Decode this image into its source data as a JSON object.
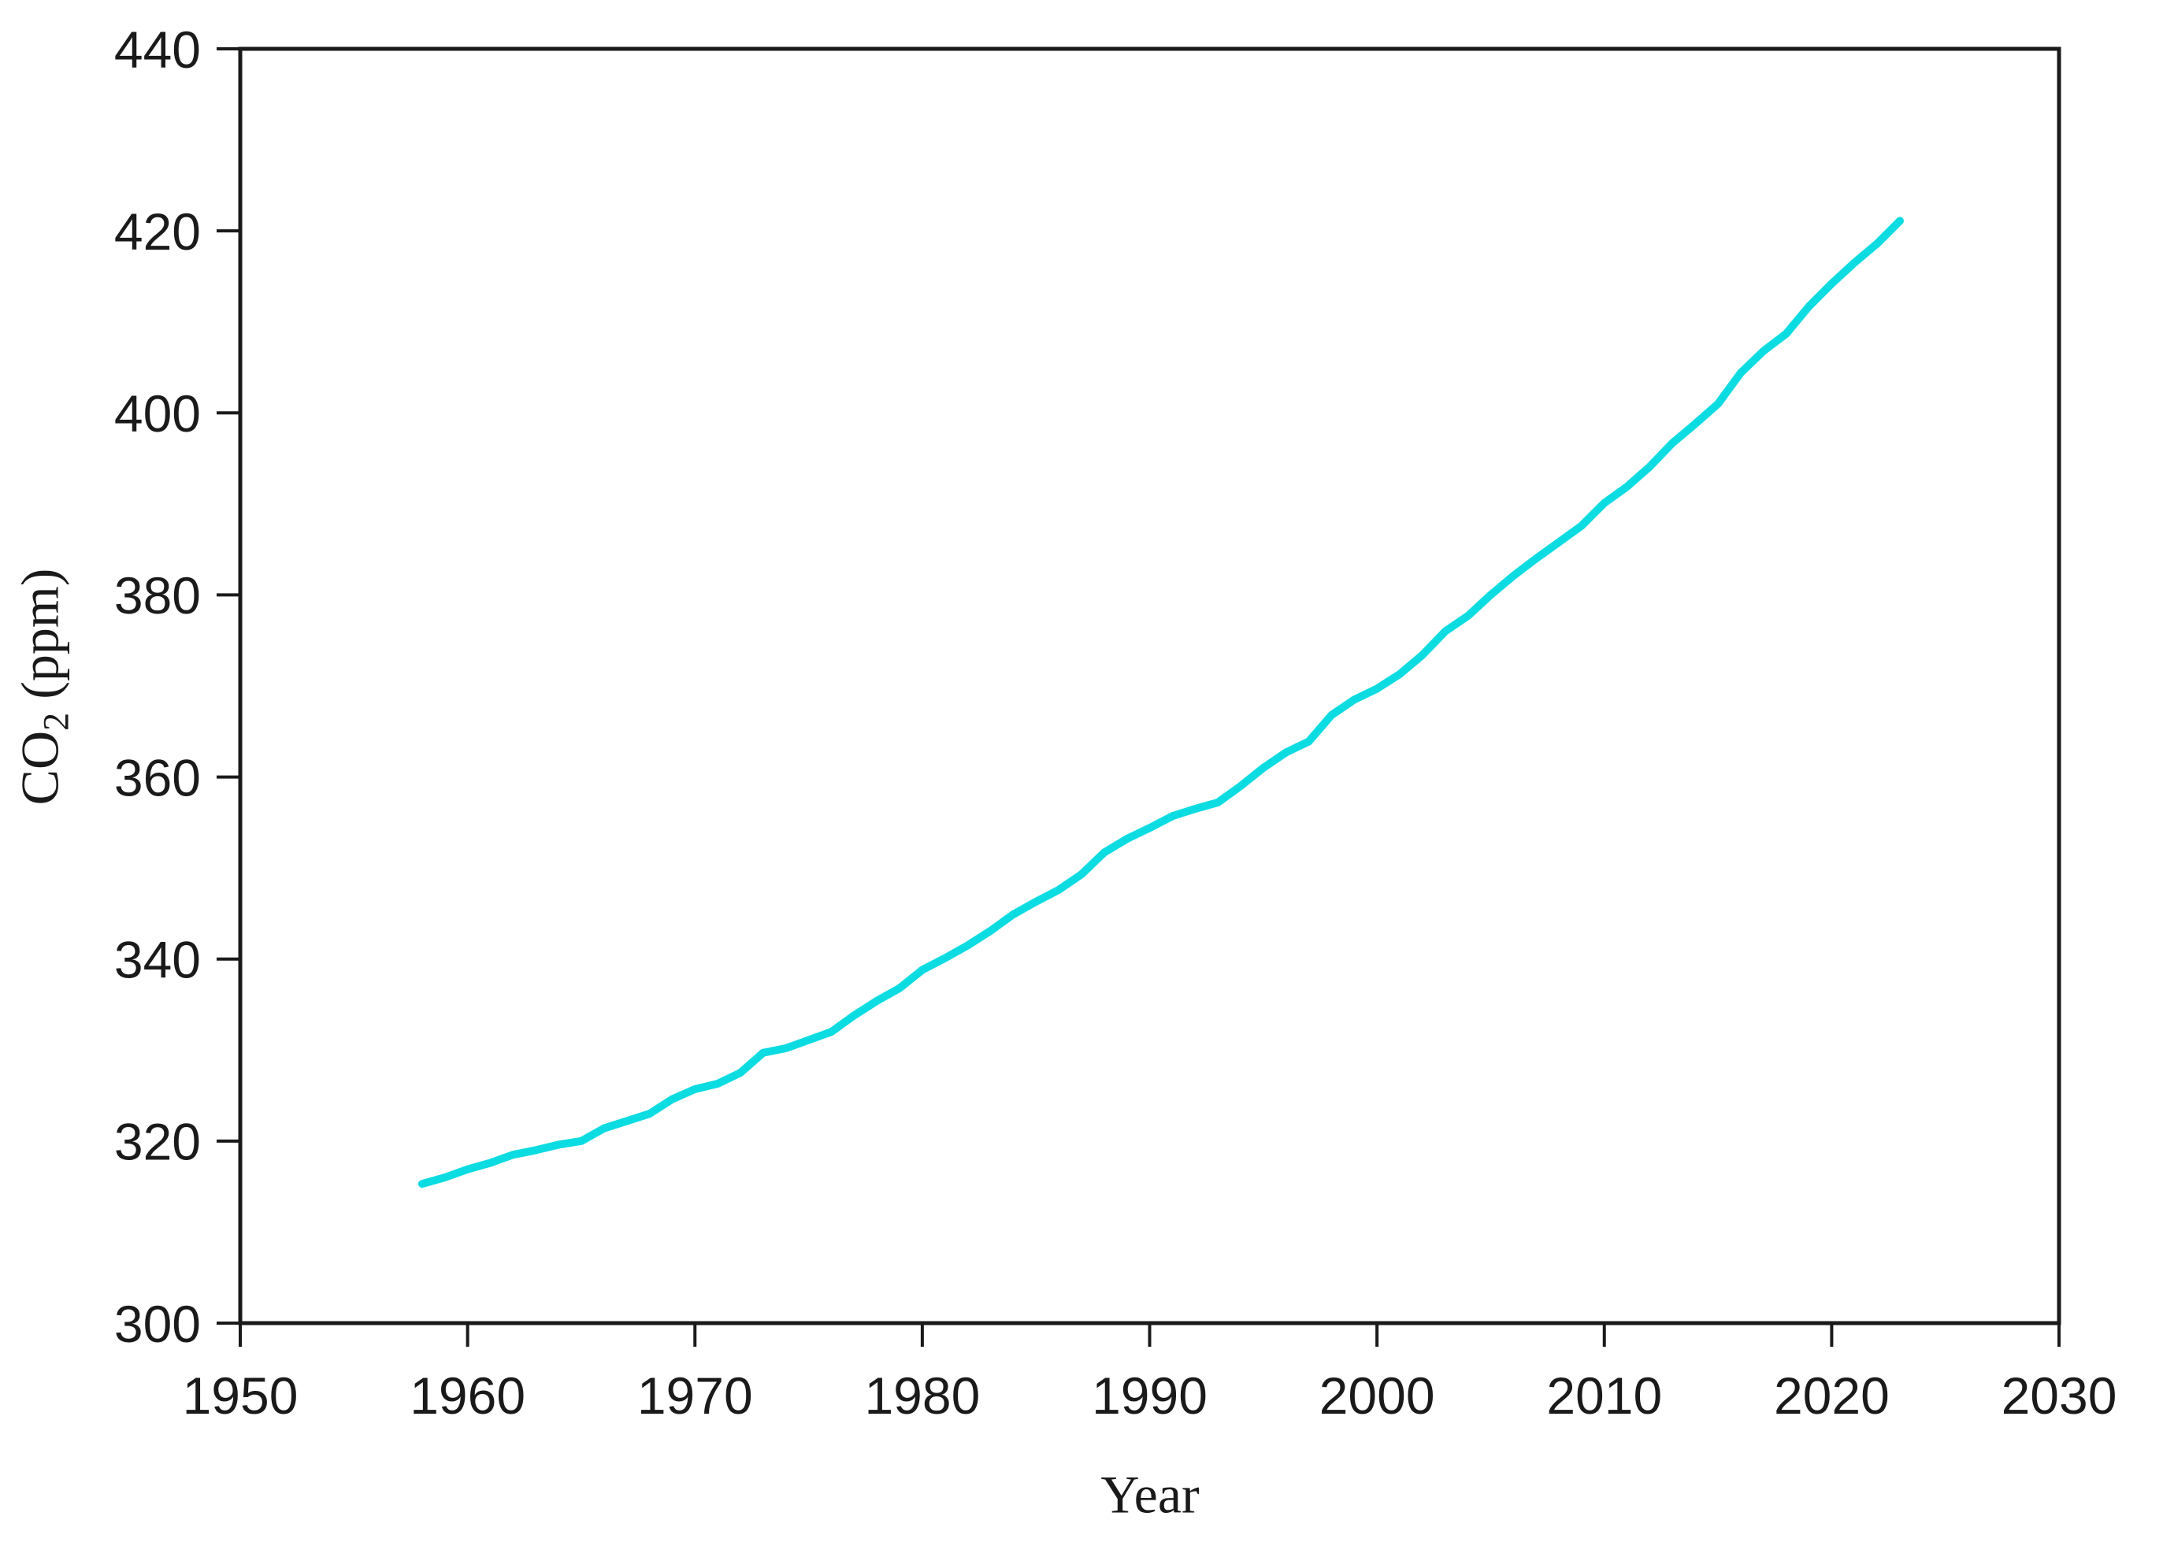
{
  "chart_data": {
    "type": "line",
    "title": "",
    "xlabel": "Year",
    "ylabel": "CO2 (ppm)",
    "ylabel_parts": {
      "prefix": "CO",
      "subscript": "2",
      "suffix": " (ppm)"
    },
    "xlim": [
      1950,
      2030
    ],
    "ylim": [
      300,
      440
    ],
    "x_ticks": [
      1950,
      1960,
      1970,
      1980,
      1990,
      2000,
      2010,
      2020,
      2030
    ],
    "y_ticks": [
      300,
      320,
      340,
      360,
      380,
      400,
      420,
      440
    ],
    "grid": false,
    "legend": "none",
    "colors": {
      "line": "#0bdce2",
      "axis": "#1a1a1a",
      "tick_label": "#1a1a1a",
      "background": "#ffffff"
    },
    "series": [
      {
        "name": "CO2",
        "color": "#0bdce2",
        "x": [
          1958,
          1959,
          1960,
          1961,
          1962,
          1963,
          1964,
          1965,
          1966,
          1967,
          1968,
          1969,
          1970,
          1971,
          1972,
          1973,
          1974,
          1975,
          1976,
          1977,
          1978,
          1979,
          1980,
          1981,
          1982,
          1983,
          1984,
          1985,
          1986,
          1987,
          1988,
          1989,
          1990,
          1991,
          1992,
          1993,
          1994,
          1995,
          1996,
          1997,
          1998,
          1999,
          2000,
          2001,
          2002,
          2003,
          2004,
          2005,
          2006,
          2007,
          2008,
          2009,
          2010,
          2011,
          2012,
          2013,
          2014,
          2015,
          2016,
          2017,
          2018,
          2019,
          2020,
          2021,
          2022,
          2023
        ],
        "y": [
          315.3,
          316.0,
          316.9,
          317.6,
          318.5,
          319.0,
          319.6,
          320.0,
          321.4,
          322.2,
          323.0,
          324.6,
          325.7,
          326.3,
          327.5,
          329.7,
          330.2,
          331.1,
          332.0,
          333.8,
          335.4,
          336.8,
          338.8,
          340.1,
          341.5,
          343.1,
          344.9,
          346.3,
          347.6,
          349.3,
          351.7,
          353.2,
          354.4,
          355.7,
          356.5,
          357.2,
          359.0,
          361.0,
          362.7,
          363.9,
          366.8,
          368.5,
          369.7,
          371.3,
          373.4,
          376.0,
          377.7,
          380.0,
          382.1,
          384.0,
          385.8,
          387.6,
          390.1,
          391.9,
          394.1,
          396.7,
          398.8,
          401.0,
          404.4,
          406.8,
          408.7,
          411.7,
          414.2,
          416.5,
          418.6,
          421.1
        ]
      }
    ]
  }
}
